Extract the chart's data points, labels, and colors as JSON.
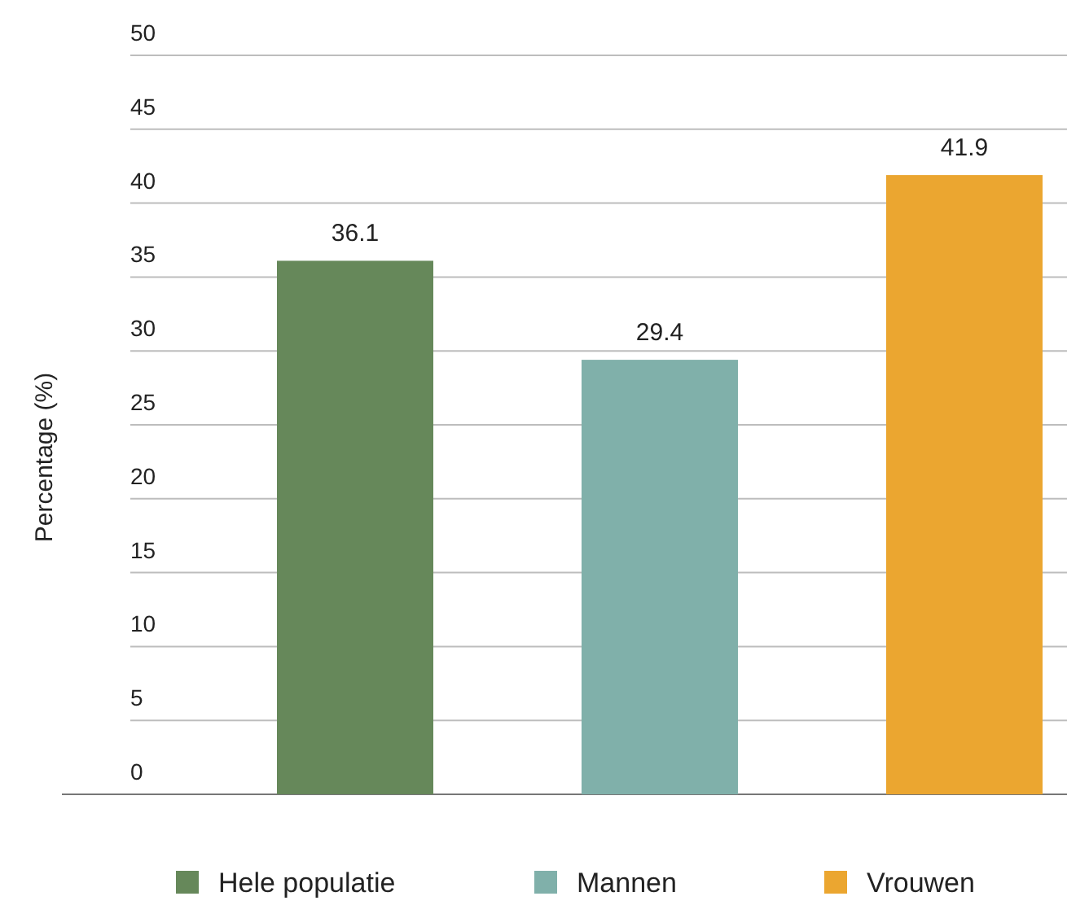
{
  "chart_data": {
    "type": "bar",
    "ylabel": "Percentage (%)",
    "categories": [
      null,
      null,
      null
    ],
    "series": [
      {
        "name": "Hele populatie",
        "color": "#66885a",
        "values": [
          36.1,
          null,
          null
        ]
      },
      {
        "name": "Mannen",
        "color": "#80b0aa",
        "values": [
          null,
          29.4,
          null
        ]
      },
      {
        "name": "Vrouwen",
        "color": "#eba630",
        "values": [
          null,
          null,
          41.9
        ]
      }
    ],
    "stacked": true,
    "ylim": [
      0,
      50
    ],
    "yticks": [
      0,
      5,
      10,
      15,
      20,
      25,
      30,
      35,
      40,
      45,
      50
    ],
    "grid": "y",
    "data_labels": true,
    "legend": "bottom",
    "tick_labels": "y"
  }
}
